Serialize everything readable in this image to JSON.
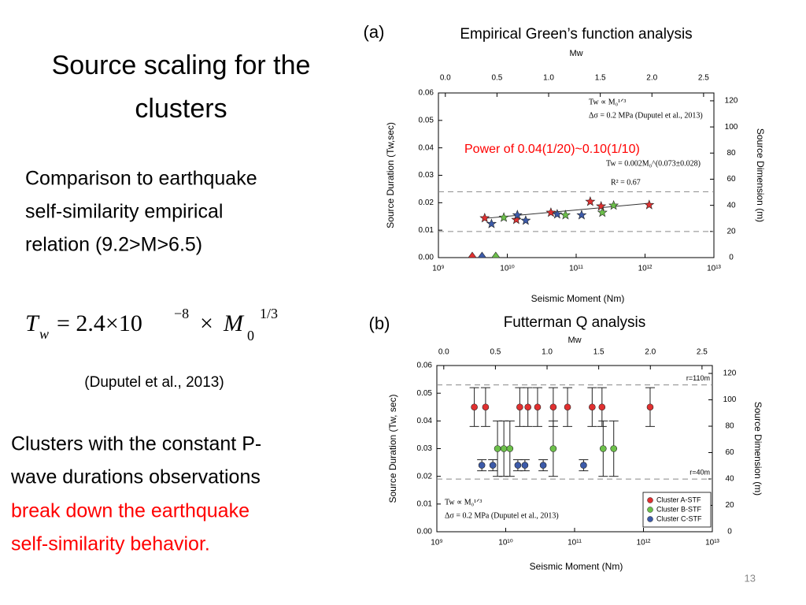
{
  "slide": {
    "title": [
      "Source scaling for the",
      "clusters"
    ],
    "comparison": [
      "Comparison to earthquake",
      "self-similarity  empirical",
      "relation (9.2>M>6.5)"
    ],
    "formula": {
      "T": "T",
      "w": "w",
      "body": "= 2.4×10",
      "exp": "−8",
      "times": "×",
      "M": "M",
      "sub": "0",
      "pow": "1/3"
    },
    "reference": "(Duputel et al., 2013)",
    "clusters": [
      "Clusters with the constant P-",
      "wave durations observations"
    ],
    "clusters_red": [
      "break down the earthquake",
      "self-similarity behavior."
    ],
    "page_number": "13",
    "panel_a": "(a)",
    "panel_b": "(b)",
    "power_note": "Power of 0.04(1/20)~0.10(1/10)"
  },
  "chart_data": [
    {
      "type": "scatter",
      "title": "Empirical Green’s function analysis",
      "x_label": "Seismic Moment (Nm)",
      "x2_label": "Mw",
      "y_label": "Source Duration (Tw,sec)",
      "y2_label": "Source Dimension (m)",
      "xscale": "log",
      "xlim": [
        1000000000.0,
        10000000000000.0
      ],
      "xticks": [
        {
          "value": 1000000000.0,
          "label": "10⁹"
        },
        {
          "value": 10000000000.0,
          "label": "10¹⁰"
        },
        {
          "value": 100000000000.0,
          "label": "10¹¹"
        },
        {
          "value": 1000000000000.0,
          "label": "10¹²"
        },
        {
          "value": 10000000000000.0,
          "label": "10¹³"
        }
      ],
      "x2lim": [
        -0.067,
        2.6
      ],
      "x2ticks": [
        {
          "value": 0,
          "label": "0.0"
        },
        0.5,
        {
          "value": 1,
          "label": "1.0"
        },
        1.5,
        {
          "value": 2,
          "label": "2.0"
        },
        2.5
      ],
      "ylim": [
        0,
        0.06
      ],
      "yticks": [
        {
          "value": 0,
          "label": "0.00"
        },
        0.01,
        0.02,
        0.03,
        0.04,
        0.05,
        0.06
      ],
      "y2lim": [
        0,
        126
      ],
      "y2ticks": [
        0,
        20,
        40,
        60,
        80,
        100,
        120
      ],
      "hlines": [
        0.024,
        0.0095
      ],
      "fit": {
        "x": [
          4700000000.0,
          1150000000000.0
        ],
        "values": [
          0.0143,
          0.0198
        ]
      },
      "annotations": [
        "Tw ∝ M₀¹ᐟ³",
        "Δσ = 0.2 MPa (Duputel et al., 2013)",
        "Tw = 0.002M₀^(0.073±0.028)",
        "R² = 0.67"
      ],
      "series": [
        {
          "color": "#e03030",
          "marker": "star",
          "x": [
            4700000000.0,
            13500000000.0,
            43000000000.0,
            160000000000.0,
            230000000000.0,
            1150000000000.0
          ],
          "values": [
            0.0144,
            0.0138,
            0.0164,
            0.0204,
            0.0187,
            0.0192
          ]
        },
        {
          "color": "#6cc04a",
          "marker": "star",
          "x": [
            8900000000.0,
            70000000000.0,
            240000000000.0,
            350000000000.0
          ],
          "values": [
            0.0146,
            0.0155,
            0.0164,
            0.019
          ]
        },
        {
          "color": "#3c5aa8",
          "marker": "star",
          "x": [
            5900000000.0,
            14000000000.0,
            18500000000.0,
            53000000000.0,
            120000000000.0
          ],
          "values": [
            0.0123,
            0.0155,
            0.0135,
            0.0158,
            0.0155
          ]
        },
        {
          "color": "#e03030",
          "marker": "triangle",
          "x": [
            3100000000.0
          ],
          "values": [
            0
          ]
        },
        {
          "color": "#3c5aa8",
          "marker": "triangle",
          "x": [
            4300000000.0
          ],
          "values": [
            0
          ]
        },
        {
          "color": "#6cc04a",
          "marker": "triangle",
          "x": [
            6800000000.0
          ],
          "values": [
            0
          ]
        }
      ]
    },
    {
      "type": "errorbar",
      "title": "Futterman Q analysis",
      "x_label": "Seismic Moment (Nm)",
      "x2_label": "Mw",
      "y_label": "Source Duration (Tw, sec)",
      "y2_label": "Source Dimension (m)",
      "xscale": "log",
      "xlim": [
        1000000000.0,
        10000000000000.0
      ],
      "xticks": [
        {
          "value": 1000000000.0,
          "label": "10⁹"
        },
        {
          "value": 10000000000.0,
          "label": "10¹⁰"
        },
        {
          "value": 100000000000.0,
          "label": "10¹¹"
        },
        {
          "value": 1000000000000.0,
          "label": "10¹²"
        },
        {
          "value": 10000000000000.0,
          "label": "10¹³"
        }
      ],
      "x2lim": [
        -0.067,
        2.6
      ],
      "x2ticks": [
        {
          "value": 0,
          "label": "0.0"
        },
        0.5,
        {
          "value": 1,
          "label": "1.0"
        },
        1.5,
        {
          "value": 2,
          "label": "2.0"
        },
        2.5
      ],
      "ylim": [
        0,
        0.06
      ],
      "yticks": [
        {
          "value": 0,
          "label": "0.00"
        },
        0.01,
        0.02,
        0.03,
        0.04,
        0.05,
        0.06
      ],
      "y2lim": [
        0,
        126
      ],
      "y2ticks": [
        0,
        20,
        40,
        60,
        80,
        100,
        120
      ],
      "hlines": [
        {
          "value": 0.053,
          "label": "r=110m"
        },
        {
          "value": 0.019,
          "label": "r=40m"
        }
      ],
      "annotations": [
        "Tw ∝ M₀¹ᐟ³",
        "Δσ = 0.2 MPa (Duputel et al., 2013)"
      ],
      "legend": "lower right",
      "series": [
        {
          "name": "Cluster A-STF",
          "color": "#e03030",
          "x": [
            3500000000.0,
            5100000000.0,
            16000000000.0,
            21000000000.0,
            29000000000.0,
            49000000000.0,
            79000000000.0,
            180000000000.0,
            250000000000.0,
            1250000000000.0
          ],
          "values": [
            0.045,
            0.045,
            0.045,
            0.045,
            0.045,
            0.045,
            0.045,
            0.045,
            0.045,
            0.045
          ],
          "errors": [
            0.007,
            0.007,
            0.007,
            0.007,
            0.007,
            0.007,
            0.007,
            0.007,
            0.007,
            0.007
          ]
        },
        {
          "name": "Cluster B-STF",
          "color": "#6cc04a",
          "x": [
            7600000000.0,
            9400000000.0,
            11500000000.0,
            49000000000.0,
            260000000000.0,
            370000000000.0
          ],
          "values": [
            0.03,
            0.03,
            0.03,
            0.03,
            0.03,
            0.03
          ],
          "errors": [
            0.01,
            0.01,
            0.01,
            0.01,
            0.01,
            0.01
          ]
        },
        {
          "name": "Cluster C-STF",
          "color": "#3c5aa8",
          "x": [
            4500000000.0,
            6500000000.0,
            15000000000.0,
            19000000000.0,
            35000000000.0,
            135000000000.0
          ],
          "values": [
            0.024,
            0.024,
            0.024,
            0.024,
            0.024,
            0.024
          ],
          "errors": [
            0.002,
            0.002,
            0.002,
            0.002,
            0.002,
            0.002
          ]
        }
      ]
    }
  ]
}
